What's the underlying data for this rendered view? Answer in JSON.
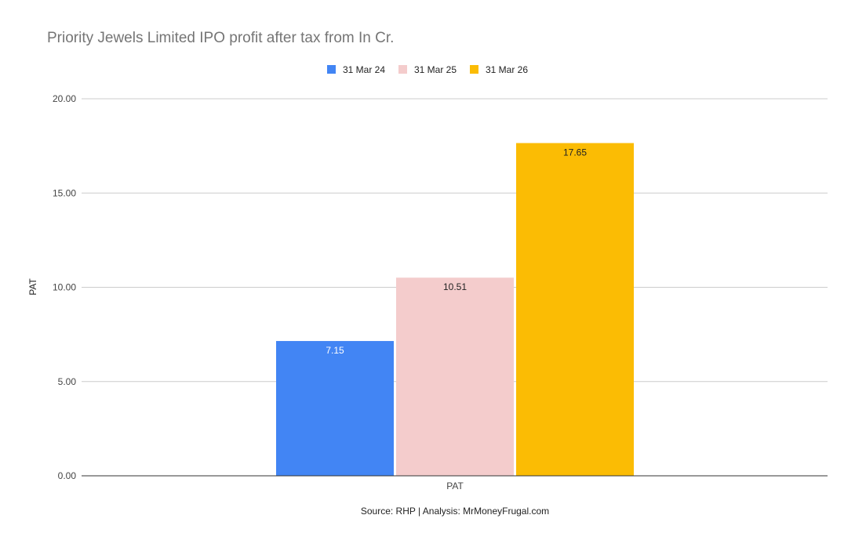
{
  "chart_data": {
    "type": "bar",
    "title": "Priority Jewels Limited IPO profit after tax from In Cr.",
    "categories": [
      "PAT"
    ],
    "series": [
      {
        "name": "31 Mar 24",
        "values": [
          7.15
        ],
        "color": "#4285f4",
        "label": "7.15",
        "label_color": "#ffffff"
      },
      {
        "name": "31 Mar 25",
        "values": [
          10.51
        ],
        "color": "#f4cccc",
        "label": "10.51",
        "label_color": "#222222"
      },
      {
        "name": "31 Mar 26",
        "values": [
          17.65
        ],
        "color": "#fbbc04",
        "label": "17.65",
        "label_color": "#222222"
      }
    ],
    "xlabel": "PAT",
    "ylabel": "PAT",
    "ylim": [
      0,
      20
    ],
    "yticks": [
      "0.00",
      "5.00",
      "10.00",
      "15.00",
      "20.00"
    ],
    "grid": true,
    "legend_position": "top-center",
    "source": "Source: RHP | Analysis: MrMoneyFrugal.com"
  }
}
